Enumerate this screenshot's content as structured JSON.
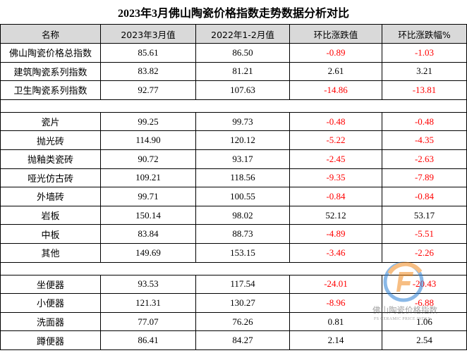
{
  "table": {
    "title": "2023年3月佛山陶瓷价格指数走势数据分析对比",
    "header": [
      "名称",
      "2023年3月值",
      "2022年1-2月值",
      "环比涨跌值",
      "环比涨跌幅%"
    ],
    "groups": [
      [
        [
          "佛山陶瓷价格总指数",
          "85.61",
          "86.50",
          "-0.89",
          "-1.03"
        ],
        [
          "建筑陶瓷系列指数",
          "83.82",
          "81.21",
          "2.61",
          "3.21"
        ],
        [
          "卫生陶瓷系列指数",
          "92.77",
          "107.63",
          "-14.86",
          "-13.81"
        ]
      ],
      [
        [
          "瓷片",
          "99.25",
          "99.73",
          "-0.48",
          "-0.48"
        ],
        [
          "抛光砖",
          "114.90",
          "120.12",
          "-5.22",
          "-4.35"
        ],
        [
          "抛釉类瓷砖",
          "90.72",
          "93.17",
          "-2.45",
          "-2.63"
        ],
        [
          "哑光仿古砖",
          "109.21",
          "118.56",
          "-9.35",
          "-7.89"
        ],
        [
          "外墙砖",
          "99.71",
          "100.55",
          "-0.84",
          "-0.84"
        ],
        [
          "岩板",
          "150.14",
          "98.02",
          "52.12",
          "53.17"
        ],
        [
          "中板",
          "83.84",
          "88.73",
          "-4.89",
          "-5.51"
        ],
        [
          "其他",
          "149.69",
          "153.15",
          "-3.46",
          "-2.26"
        ]
      ],
      [
        [
          "坐便器",
          "93.53",
          "117.54",
          "-24.01",
          "-20.43"
        ],
        [
          "小便器",
          "121.31",
          "130.27",
          "-8.96",
          "-6.88"
        ],
        [
          "洗面器",
          "77.07",
          "76.26",
          "0.81",
          "1.06"
        ],
        [
          "蹲便器",
          "86.41",
          "84.27",
          "2.14",
          "2.54"
        ]
      ]
    ]
  },
  "watermark": {
    "title": "佛山陶瓷价格指数",
    "subtitle": "FS CERAMIC PRICE INDEX"
  }
}
